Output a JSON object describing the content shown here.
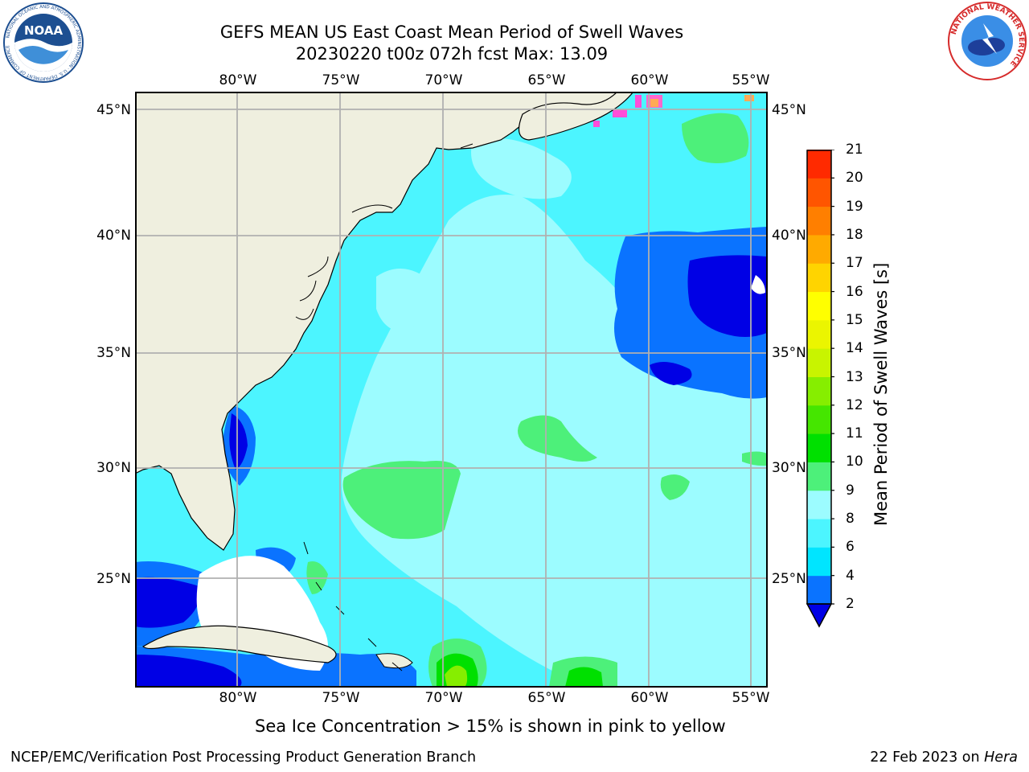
{
  "header": {
    "title_line1": "GEFS MEAN US East Coast Mean Period of Swell Waves",
    "title_line2": "20230220 t00z 072h fcst   Max: 13.09"
  },
  "logos": {
    "left": {
      "name": "noaa-logo",
      "text": "NOAA",
      "ring_text": "NATIONAL OCEANIC AND ATMOSPHERIC ADMINISTRATION · U.S. DEPARTMENT OF COMMERCE"
    },
    "right": {
      "name": "nws-logo",
      "ring_text": "NATIONAL WEATHER SERVICE"
    }
  },
  "map": {
    "lon_labels": [
      "80°W",
      "75°W",
      "70°W",
      "65°W",
      "60°W",
      "55°W"
    ],
    "lat_labels": [
      "45°N",
      "40°N",
      "35°N",
      "30°N",
      "25°N"
    ],
    "extent": {
      "lon_min": -85,
      "lon_max": -54.2,
      "lat_min": 20,
      "lat_max": 45.8
    },
    "grid": true,
    "colors": {
      "land": "#efefdf",
      "coast": "#000000",
      "grid": "#b0b0b0",
      "missing": "#ffffff"
    }
  },
  "colorbar": {
    "label": "Mean Period of Swell Waves [s]",
    "ticks": [
      "2",
      "4",
      "6",
      "8",
      "9",
      "10",
      "11",
      "12",
      "13",
      "14",
      "15",
      "16",
      "17",
      "18",
      "19",
      "20",
      "21"
    ],
    "levels": [
      2,
      4,
      6,
      8,
      9,
      10,
      11,
      12,
      13,
      14,
      15,
      16,
      17,
      18,
      19,
      20,
      21
    ],
    "colors": [
      "#0a73ff",
      "#00e5ff",
      "#4cf5ff",
      "#9cfcff",
      "#4df07a",
      "#00e000",
      "#45e600",
      "#86ee00",
      "#c8f400",
      "#ebf500",
      "#ffff00",
      "#ffd400",
      "#ffaa00",
      "#ff7f00",
      "#ff5500",
      "#ff2a00",
      "#ff0000"
    ],
    "under_color": "#0000e5",
    "extend": "min"
  },
  "caption": "Sea Ice Concentration > 15% is shown in pink to yellow",
  "footer": {
    "left": "NCEP/EMC/Verification Post Processing Product Generation Branch",
    "right_prefix": "22 Feb 2023 on ",
    "right_italic": "Hera"
  }
}
